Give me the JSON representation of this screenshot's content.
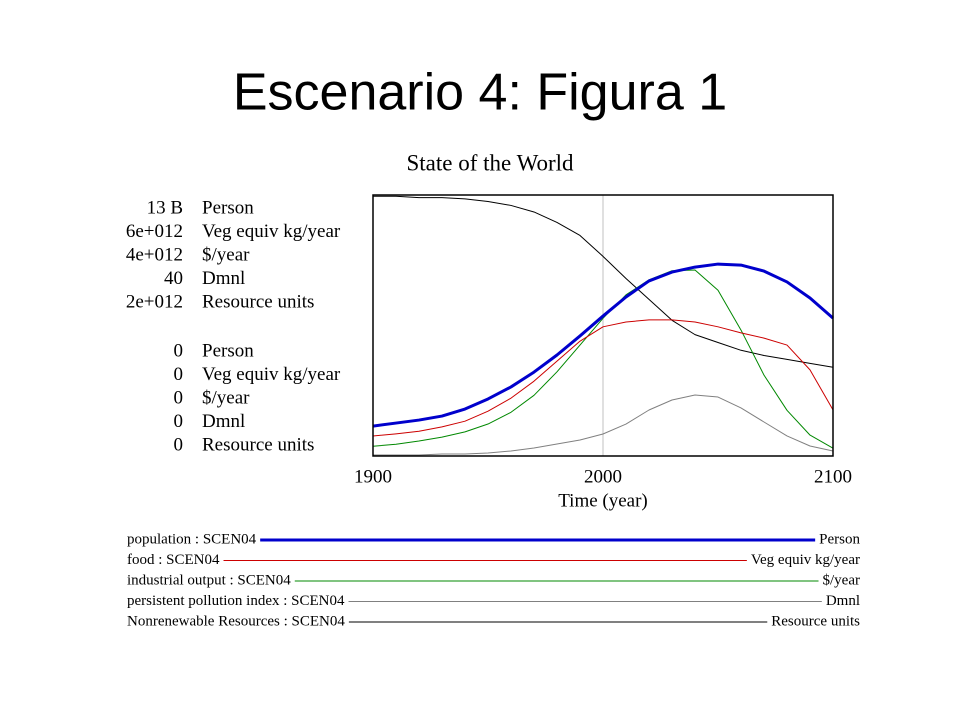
{
  "slide": {
    "title": "Escenario 4: Figura 1"
  },
  "chart_data": {
    "type": "line",
    "title": "State of the World",
    "x_label": "Time (year)",
    "xlim": [
      1900,
      2100
    ],
    "xticks": [
      1900,
      2000,
      2100
    ],
    "grid": true,
    "x": [
      1900,
      1910,
      1920,
      1930,
      1940,
      1950,
      1960,
      1970,
      1980,
      1990,
      2000,
      2010,
      2020,
      2030,
      2040,
      2050,
      2060,
      2070,
      2080,
      2090,
      2100
    ],
    "series": [
      {
        "name": "population : SCEN04",
        "unit": "Person",
        "color": "#0000cc",
        "line_width": 3,
        "ylim": [
          0,
          13000000000
        ],
        "yticks": [
          0,
          {
            "value": 13000000000,
            "label": "13 B"
          }
        ],
        "values": [
          1490000000.0,
          1640000000.0,
          1790000000.0,
          1990000000.0,
          2340000000.0,
          2840000000.0,
          3440000000.0,
          4180000000.0,
          5030000000.0,
          5980000000.0,
          6970000000.0,
          7920000000.0,
          8720000000.0,
          9160000000.0,
          9410000000.0,
          9560000000.0,
          9510000000.0,
          9210000000.0,
          8670000000.0,
          7870000000.0,
          6870000000.0
        ]
      },
      {
        "name": "food : SCEN04",
        "unit": "Veg equiv kg/year",
        "color": "#cc0000",
        "line_width": 1,
        "ylim": [
          0,
          6000000000000.0
        ],
        "yticks": [
          0,
          {
            "value": 6000000000000.0,
            "label": "6e+012"
          }
        ],
        "values": [
          460000000000.0,
          510000000000.0,
          570000000000.0,
          670000000000.0,
          800000000000.0,
          1030000000000.0,
          1330000000000.0,
          1720000000000.0,
          2180000000000.0,
          2640000000000.0,
          2970000000000.0,
          3080000000000.0,
          3130000000000.0,
          3130000000000.0,
          3080000000000.0,
          2970000000000.0,
          2830000000000.0,
          2710000000000.0,
          2550000000000.0,
          1980000000000.0,
          1060000000000.0
        ]
      },
      {
        "name": "industrial output : SCEN04",
        "unit": "$/year",
        "color": "#008800",
        "line_width": 1,
        "ylim": [
          0,
          4000000000000.0
        ],
        "yticks": [
          0,
          {
            "value": 4000000000000.0,
            "label": "4e+012"
          }
        ],
        "values": [
          150000000000.0,
          180000000000.0,
          230000000000.0,
          290000000000.0,
          370000000000.0,
          490000000000.0,
          670000000000.0,
          930000000000.0,
          1290000000000.0,
          1700000000000.0,
          2110000000000.0,
          2470000000000.0,
          2700000000000.0,
          2840000000000.0,
          2850000000000.0,
          2540000000000.0,
          1930000000000.0,
          1240000000000.0,
          700000000000.0,
          320000000000.0,
          120000000000.0
        ]
      },
      {
        "name": "persistent pollution index : SCEN04",
        "unit": "Dmnl",
        "color": "#808080",
        "line_width": 1,
        "ylim": [
          0,
          40
        ],
        "yticks": [
          0,
          40
        ],
        "values": [
          0.15,
          0.15,
          0.15,
          0.31,
          0.31,
          0.46,
          0.77,
          1.23,
          1.84,
          2.45,
          3.37,
          4.9,
          7.05,
          8.58,
          9.35,
          9.04,
          7.36,
          5.21,
          3.07,
          1.53,
          0.77
        ]
      },
      {
        "name": "Nonrenewable Resources : SCEN04",
        "unit": "Resource units",
        "color": "#000000",
        "line_width": 1,
        "ylim": [
          0,
          2000000000000.0
        ],
        "yticks": [
          0,
          {
            "value": 2000000000000.0,
            "label": "2e+012"
          }
        ],
        "values": [
          1990000000000.0,
          1990000000000.0,
          1980000000000.0,
          1980000000000.0,
          1970000000000.0,
          1950000000000.0,
          1920000000000.0,
          1870000000000.0,
          1790000000000.0,
          1690000000000.0,
          1530000000000.0,
          1360000000000.0,
          1200000000000.0,
          1040000000000.0,
          930000000000.0,
          870000000000.0,
          810000000000.0,
          770000000000.0,
          740000000000.0,
          710000000000.0,
          680000000000.0
        ]
      }
    ]
  }
}
